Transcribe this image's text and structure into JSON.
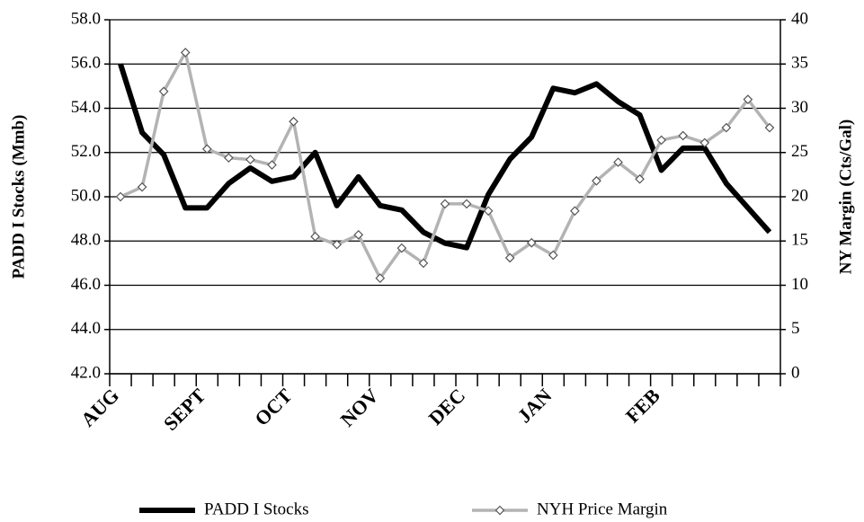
{
  "chart_data": {
    "type": "line",
    "categories": [
      "AUG",
      null,
      null,
      null,
      "SEPT",
      null,
      null,
      null,
      "OCT",
      null,
      null,
      null,
      "NOV",
      null,
      null,
      null,
      "DEC",
      null,
      null,
      null,
      "JAN",
      null,
      null,
      null,
      null,
      "FEB",
      null,
      null,
      null,
      null,
      null
    ],
    "ylabel": "PADD I Stocks (Mmb)",
    "y2label": "NY Margin (Cts/Gal)",
    "ylim": [
      42,
      58
    ],
    "yticks": [
      {
        "value": 42,
        "label": "42.0"
      },
      {
        "value": 44,
        "label": "44.0"
      },
      {
        "value": 46,
        "label": "46.0"
      },
      {
        "value": 48,
        "label": "48.0"
      },
      {
        "value": 50,
        "label": "50.0"
      },
      {
        "value": 52,
        "label": "52.0"
      },
      {
        "value": 54,
        "label": "54.0"
      },
      {
        "value": 56,
        "label": "56.0"
      },
      {
        "value": 58,
        "label": "58.0"
      }
    ],
    "y2lim": [
      0,
      40
    ],
    "y2ticks": [
      0,
      5,
      10,
      15,
      20,
      25,
      30,
      35,
      40
    ],
    "grid": true,
    "legend": "bottom",
    "series": [
      {
        "name": "PADD I Stocks",
        "color": "#000000",
        "values": [
          56.0,
          52.9,
          51.9,
          49.5,
          49.5,
          50.6,
          51.3,
          50.7,
          50.9,
          52.0,
          49.6,
          50.9,
          49.6,
          49.4,
          48.4,
          47.9,
          47.7,
          50.1,
          51.7,
          52.7,
          54.9,
          54.7,
          55.1,
          54.3,
          53.7,
          51.2,
          52.2,
          52.2,
          50.6,
          49.5,
          48.4
        ]
      },
      {
        "name": "NYH Price Margin",
        "color": "#b3b3b3",
        "axis": "y2",
        "values": [
          20.0,
          21.1,
          31.9,
          36.3,
          25.4,
          24.4,
          24.2,
          23.6,
          28.5,
          15.5,
          14.6,
          15.7,
          10.8,
          14.2,
          12.5,
          19.2,
          19.2,
          18.4,
          13.1,
          14.8,
          13.4,
          18.4,
          21.8,
          23.9,
          22.0,
          26.4,
          26.9,
          26.1,
          27.8,
          31.0,
          27.8
        ]
      }
    ]
  }
}
